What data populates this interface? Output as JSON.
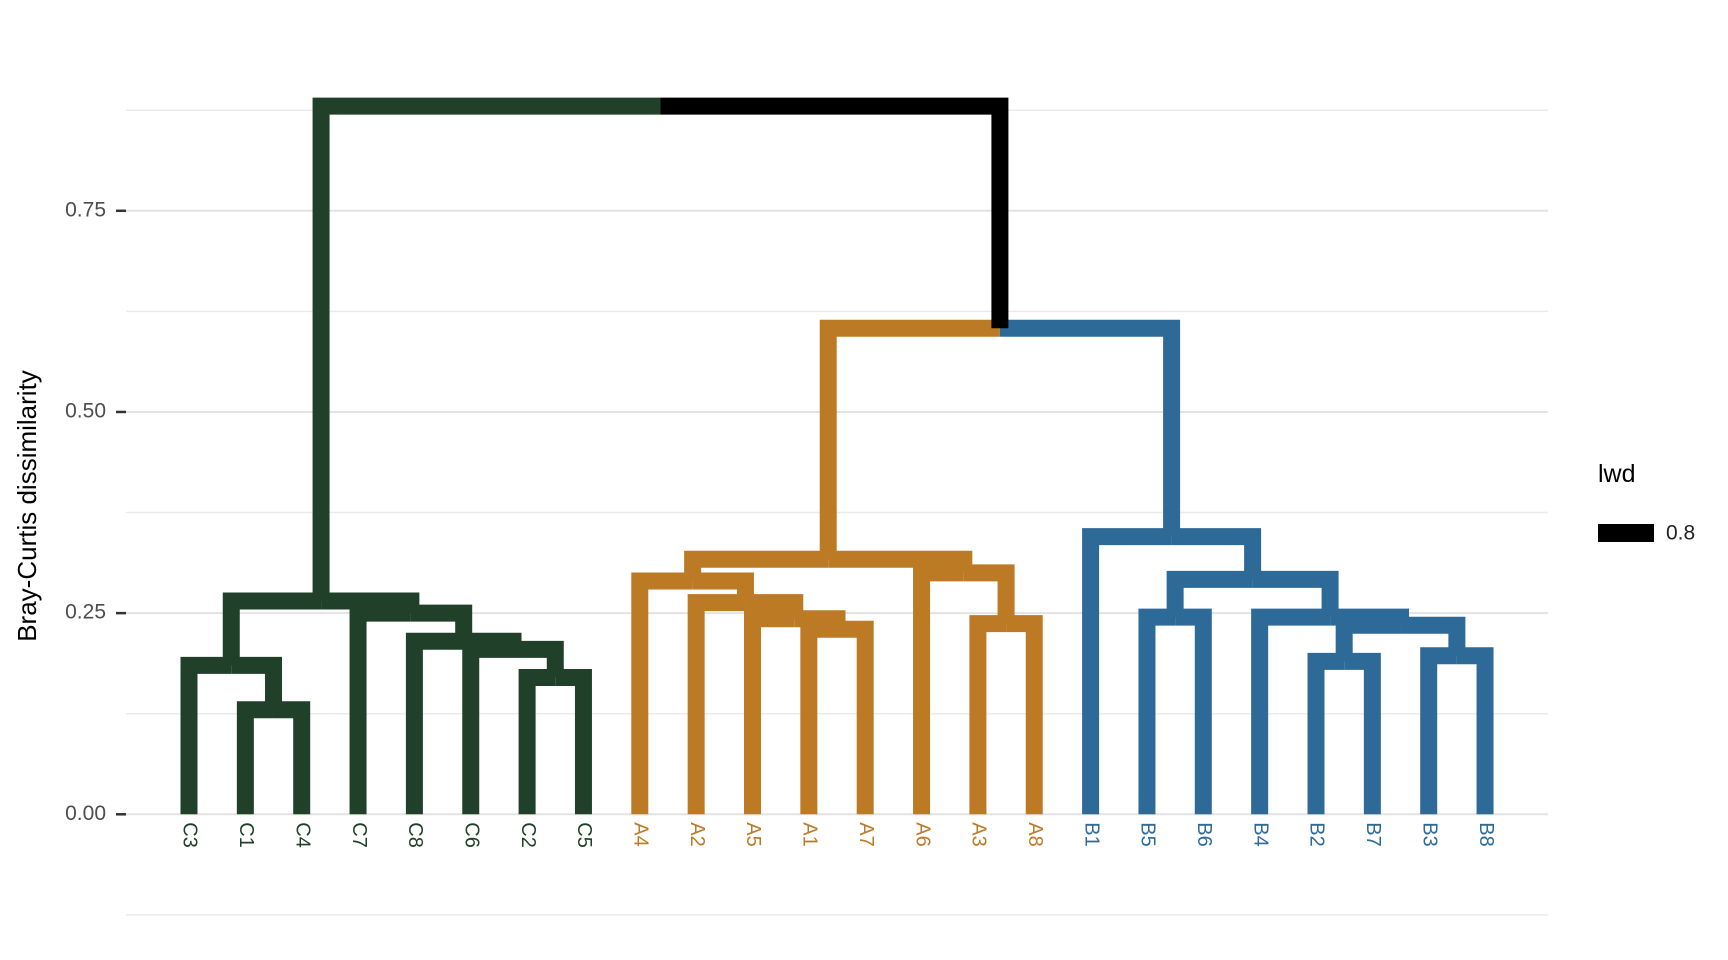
{
  "chart_data": {
    "type": "dendrogram",
    "y_label": "Bray-Curtis dissimilarity",
    "ylim": [
      -0.15,
      0.92
    ],
    "yticks": [
      {
        "value": 0,
        "label": "0.00"
      },
      {
        "value": 0.25,
        "label": "0.25"
      },
      {
        "value": 0.5,
        "label": "0.50"
      },
      {
        "value": 0.75,
        "label": "0.75"
      }
    ],
    "minor_yticks": [
      -0.125,
      0.125,
      0.375,
      0.625,
      0.875
    ],
    "grid": true,
    "mixed_color": "#000000",
    "leaves": [
      {
        "label": "C3",
        "color": "#21402a"
      },
      {
        "label": "C1",
        "color": "#21402a"
      },
      {
        "label": "C4",
        "color": "#21402a"
      },
      {
        "label": "C7",
        "color": "#21402a"
      },
      {
        "label": "C8",
        "color": "#21402a"
      },
      {
        "label": "C6",
        "color": "#21402a"
      },
      {
        "label": "C2",
        "color": "#21402a"
      },
      {
        "label": "C5",
        "color": "#21402a"
      },
      {
        "label": "A4",
        "color": "#bd7a25"
      },
      {
        "label": "A2",
        "color": "#bd7a25"
      },
      {
        "label": "A5",
        "color": "#bd7a25"
      },
      {
        "label": "A1",
        "color": "#bd7a25"
      },
      {
        "label": "A7",
        "color": "#bd7a25"
      },
      {
        "label": "A6",
        "color": "#bd7a25"
      },
      {
        "label": "A3",
        "color": "#bd7a25"
      },
      {
        "label": "A8",
        "color": "#bd7a25"
      },
      {
        "label": "B1",
        "color": "#2e6a97"
      },
      {
        "label": "B5",
        "color": "#2e6a97"
      },
      {
        "label": "B6",
        "color": "#2e6a97"
      },
      {
        "label": "B4",
        "color": "#2e6a97"
      },
      {
        "label": "B2",
        "color": "#2e6a97"
      },
      {
        "label": "B7",
        "color": "#2e6a97"
      },
      {
        "label": "B3",
        "color": "#2e6a97"
      },
      {
        "label": "B8",
        "color": "#2e6a97"
      }
    ],
    "merges": [
      {
        "left": 1,
        "right": 2,
        "height": 0.13
      },
      {
        "left": 0,
        "right": 24,
        "height": 0.185
      },
      {
        "left": 6,
        "right": 7,
        "height": 0.17
      },
      {
        "left": 5,
        "right": 26,
        "height": 0.205
      },
      {
        "left": 4,
        "right": 27,
        "height": 0.215
      },
      {
        "left": 3,
        "right": 28,
        "height": 0.25
      },
      {
        "left": 25,
        "right": 29,
        "height": 0.265
      },
      {
        "left": 11,
        "right": 12,
        "height": 0.23
      },
      {
        "left": 10,
        "right": 31,
        "height": 0.243
      },
      {
        "left": 9,
        "right": 32,
        "height": 0.263
      },
      {
        "left": 8,
        "right": 33,
        "height": 0.29
      },
      {
        "left": 14,
        "right": 15,
        "height": 0.237
      },
      {
        "left": 13,
        "right": 35,
        "height": 0.3
      },
      {
        "left": 34,
        "right": 36,
        "height": 0.317
      },
      {
        "left": 17,
        "right": 18,
        "height": 0.245
      },
      {
        "left": 20,
        "right": 21,
        "height": 0.19
      },
      {
        "left": 22,
        "right": 23,
        "height": 0.197
      },
      {
        "left": 39,
        "right": 40,
        "height": 0.235
      },
      {
        "left": 19,
        "right": 41,
        "height": 0.245
      },
      {
        "left": 38,
        "right": 42,
        "height": 0.292
      },
      {
        "left": 16,
        "right": 43,
        "height": 0.345
      },
      {
        "left": 37,
        "right": 44,
        "height": 0.604
      },
      {
        "left": 30,
        "right": 45,
        "height": 0.88
      }
    ],
    "legend": {
      "title": "lwd",
      "values": [
        0.8
      ],
      "color": "#000000"
    }
  }
}
